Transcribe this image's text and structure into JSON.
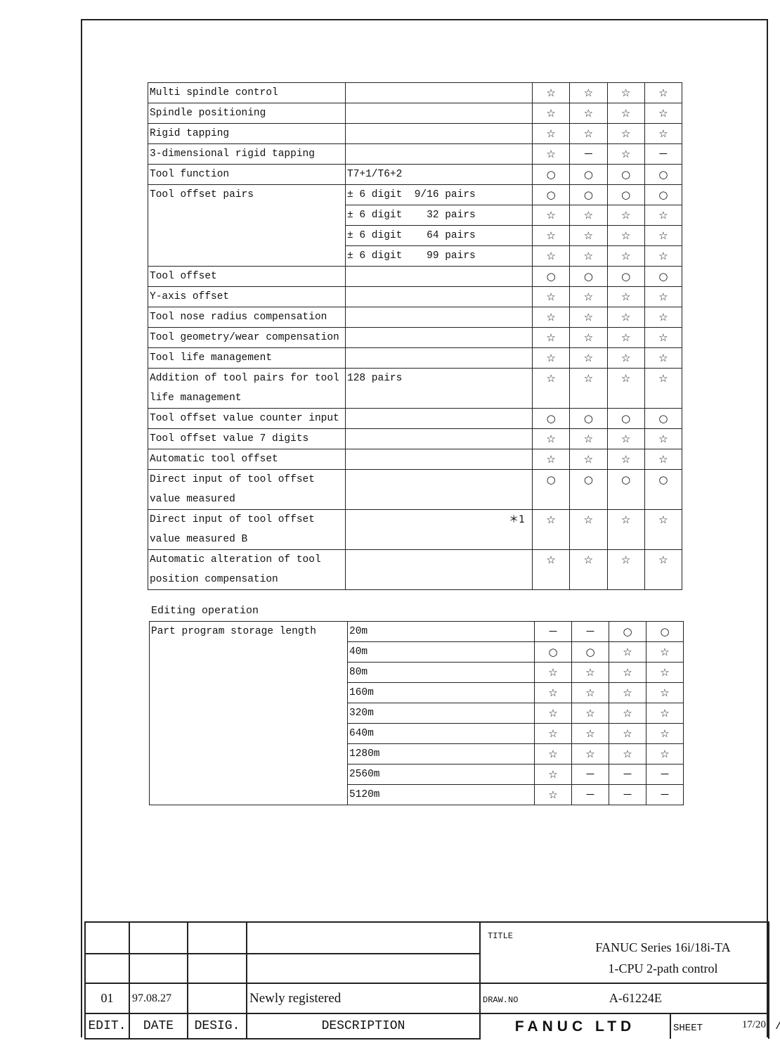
{
  "table1": [
    {
      "name": "Multi spindle control",
      "rows": [
        {
          "spec": "",
          "marks": [
            "☆",
            "☆",
            "☆",
            "☆"
          ]
        }
      ]
    },
    {
      "name": "Spindle positioning",
      "rows": [
        {
          "spec": "",
          "marks": [
            "☆",
            "☆",
            "☆",
            "☆"
          ]
        }
      ]
    },
    {
      "name": "Rigid tapping",
      "rows": [
        {
          "spec": "",
          "marks": [
            "☆",
            "☆",
            "☆",
            "☆"
          ]
        }
      ]
    },
    {
      "name": "3-dimensional rigid tapping",
      "rows": [
        {
          "spec": "",
          "marks": [
            "☆",
            "－",
            "☆",
            "－"
          ]
        }
      ]
    },
    {
      "name": "Tool function",
      "rows": [
        {
          "spec": "T7+1/T6+2",
          "marks": [
            "○",
            "○",
            "○",
            "○"
          ]
        }
      ]
    },
    {
      "name": "Tool offset pairs",
      "rows": [
        {
          "spec": "± 6 digit  9/16 pairs",
          "marks": [
            "○",
            "○",
            "○",
            "○"
          ]
        },
        {
          "spec": "± 6 digit    32 pairs",
          "marks": [
            "☆",
            "☆",
            "☆",
            "☆"
          ]
        },
        {
          "spec": "± 6 digit    64 pairs",
          "marks": [
            "☆",
            "☆",
            "☆",
            "☆"
          ]
        },
        {
          "spec": "± 6 digit    99 pairs",
          "marks": [
            "☆",
            "☆",
            "☆",
            "☆"
          ]
        }
      ]
    },
    {
      "name": "Tool offset",
      "rows": [
        {
          "spec": "",
          "marks": [
            "○",
            "○",
            "○",
            "○"
          ]
        }
      ]
    },
    {
      "name": "Y-axis offset",
      "rows": [
        {
          "spec": "",
          "marks": [
            "☆",
            "☆",
            "☆",
            "☆"
          ]
        }
      ]
    },
    {
      "name": "Tool nose radius compensation",
      "rows": [
        {
          "spec": "",
          "marks": [
            "☆",
            "☆",
            "☆",
            "☆"
          ]
        }
      ]
    },
    {
      "name": "Tool geometry/wear compensation",
      "rows": [
        {
          "spec": "",
          "marks": [
            "☆",
            "☆",
            "☆",
            "☆"
          ]
        }
      ]
    },
    {
      "name": "Tool life management",
      "rows": [
        {
          "spec": "",
          "marks": [
            "☆",
            "☆",
            "☆",
            "☆"
          ]
        }
      ]
    },
    {
      "name": "Addition of tool pairs for tool life management",
      "rows": [
        {
          "spec": "128 pairs",
          "marks": [
            "☆",
            "☆",
            "☆",
            "☆"
          ]
        }
      ]
    },
    {
      "name": "Tool offset value counter input",
      "rows": [
        {
          "spec": "",
          "marks": [
            "○",
            "○",
            "○",
            "○"
          ]
        }
      ]
    },
    {
      "name": "Tool offset value 7 digits",
      "rows": [
        {
          "spec": "",
          "marks": [
            "☆",
            "☆",
            "☆",
            "☆"
          ]
        }
      ]
    },
    {
      "name": "Automatic tool offset",
      "rows": [
        {
          "spec": "",
          "marks": [
            "☆",
            "☆",
            "☆",
            "☆"
          ]
        }
      ]
    },
    {
      "name": "Direct input of tool offset value measured",
      "rows": [
        {
          "spec": "",
          "marks": [
            "○",
            "○",
            "○",
            "○"
          ]
        }
      ]
    },
    {
      "name": "Direct input of tool offset value measured B",
      "rows": [
        {
          "spec": "",
          "note": "＊1",
          "marks": [
            "☆",
            "☆",
            "☆",
            "☆"
          ]
        }
      ]
    },
    {
      "name": "Automatic alteration of tool position compensation",
      "rows": [
        {
          "spec": "",
          "marks": [
            "☆",
            "☆",
            "☆",
            "☆"
          ]
        }
      ]
    }
  ],
  "section_label": "Editing operation",
  "table2": [
    {
      "name": "Part program storage length",
      "rows": [
        {
          "spec": "20m",
          "marks": [
            "－",
            "－",
            "○",
            "○"
          ]
        },
        {
          "spec": "40m",
          "marks": [
            "○",
            "○",
            "☆",
            "☆"
          ]
        },
        {
          "spec": "80m",
          "marks": [
            "☆",
            "☆",
            "☆",
            "☆"
          ]
        },
        {
          "spec": "160m",
          "marks": [
            "☆",
            "☆",
            "☆",
            "☆"
          ]
        },
        {
          "spec": "320m",
          "marks": [
            "☆",
            "☆",
            "☆",
            "☆"
          ]
        },
        {
          "spec": "640m",
          "marks": [
            "☆",
            "☆",
            "☆",
            "☆"
          ]
        },
        {
          "spec": "1280m",
          "marks": [
            "☆",
            "☆",
            "☆",
            "☆"
          ]
        },
        {
          "spec": "2560m",
          "marks": [
            "☆",
            "－",
            "－",
            "－"
          ]
        },
        {
          "spec": "5120m",
          "marks": [
            "☆",
            "－",
            "－",
            "－"
          ]
        }
      ]
    }
  ],
  "titleblock": {
    "title_label": "TITLE",
    "title_line1": "FANUC Series 16i/18i-TA",
    "title_line2": "1-CPU 2-path control",
    "edit": "01",
    "date": "97.08.27",
    "desig": "",
    "description": "Newly registered",
    "drawno_label": "DRAW.NO",
    "drawno": "A-61224E",
    "h_edit": "EDIT.",
    "h_date": "DATE",
    "h_desig": "DESIG.",
    "h_description": "DESCRIPTION",
    "company": "FANUC LTD",
    "sheet_label": "SHEET",
    "sheet": "17/20",
    "corner_mark": "/"
  }
}
